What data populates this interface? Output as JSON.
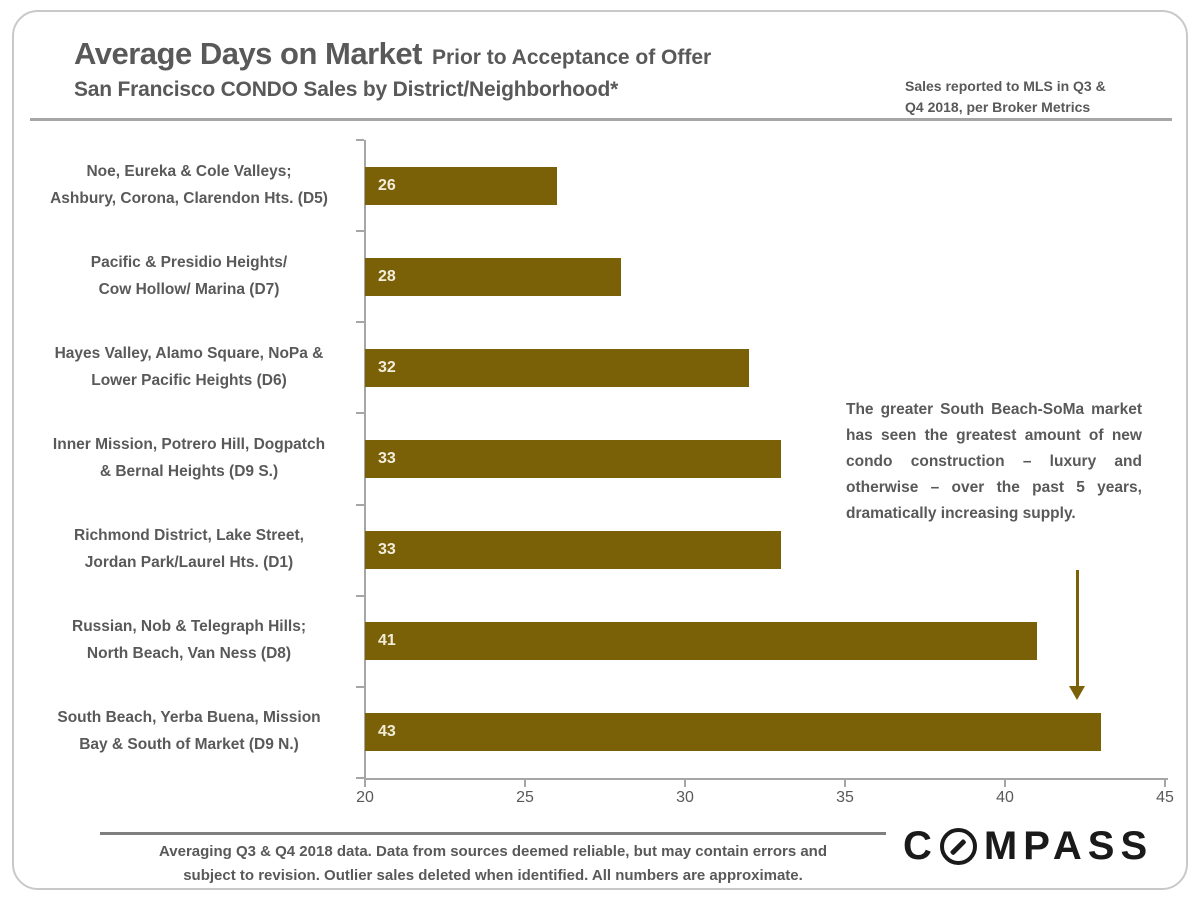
{
  "header": {
    "title_main": "Average Days on Market",
    "title_sub": "Prior to Acceptance of Offer",
    "title_line2": "San Francisco CONDO Sales by District/Neighborhood*",
    "note_lines": [
      "Sales reported to MLS in Q3 &",
      "Q4 2018, per Broker Metrics"
    ]
  },
  "chart_data": {
    "type": "bar",
    "orientation": "horizontal",
    "title": "Average Days on Market Prior to Acceptance of Offer — San Francisco CONDO Sales by District/Neighborhood",
    "categories": [
      "Noe, Eureka & Cole Valleys; Ashbury, Corona, Clarendon Hts. (D5)",
      "Pacific & Presidio Heights/ Cow Hollow/ Marina (D7)",
      "Hayes Valley, Alamo Square, NoPa & Lower Pacific Heights (D6)",
      "Inner Mission, Potrero Hill, Dogpatch & Bernal Heights (D9 S.)",
      "Richmond District, Lake Street, Jordan Park/Laurel Hts. (D1)",
      "Russian, Nob & Telegraph Hills; North Beach, Van Ness (D8)",
      "South Beach, Yerba Buena, Mission Bay & South of Market (D9 N.)"
    ],
    "category_lines": [
      [
        "Noe, Eureka & Cole Valleys;",
        "Ashbury, Corona, Clarendon Hts. (D5)"
      ],
      [
        "Pacific & Presidio Heights/",
        "Cow Hollow/ Marina (D7)"
      ],
      [
        "Hayes Valley, Alamo Square, NoPa &",
        "Lower Pacific Heights (D6)"
      ],
      [
        "Inner Mission, Potrero Hill, Dogpatch",
        "& Bernal Heights (D9 S.)"
      ],
      [
        "Richmond District, Lake Street,",
        "Jordan Park/Laurel Hts. (D1)"
      ],
      [
        "Russian, Nob & Telegraph Hills;",
        "North Beach, Van Ness (D8)"
      ],
      [
        "South Beach, Yerba Buena, Mission",
        "Bay & South of Market (D9 N.)"
      ]
    ],
    "values": [
      26,
      28,
      32,
      33,
      33,
      41,
      43
    ],
    "xlabel": "",
    "ylabel": "",
    "xlim": [
      20,
      45
    ],
    "xticks": [
      20,
      25,
      30,
      35,
      40,
      45
    ],
    "grid": false,
    "legend": null,
    "bar_color": "#7a6006",
    "value_label_color": "#f2edda",
    "axis_color": "#a6a6a6"
  },
  "annotation": {
    "text": "The greater South Beach-SoMa market has seen the greatest amount of new condo construction – luxury and otherwise – over the past 5 years, dramatically increasing supply.",
    "arrow_color": "#7a6006"
  },
  "footer": {
    "line1": "Averaging Q3 & Q4 2018 data. Data from sources deemed reliable,  but may contain errors and",
    "line2": "subject to revision. Outlier sales deleted  when identified. All  numbers are approximate.",
    "logo": {
      "name": "COMPASS",
      "prefix": "C",
      "suffix": "MPASS"
    }
  }
}
